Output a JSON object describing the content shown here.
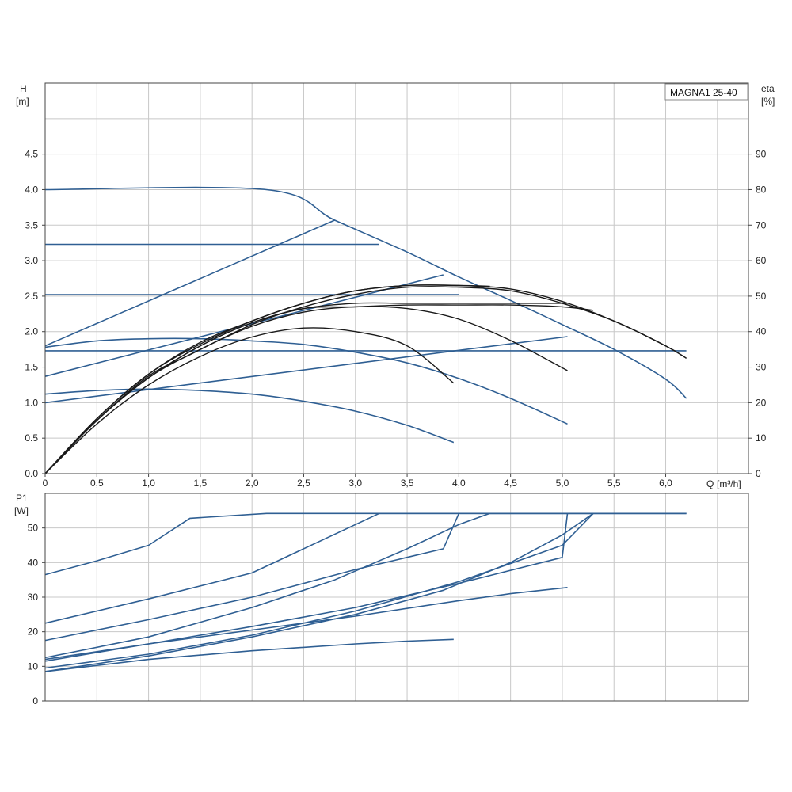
{
  "chart_data": [
    {
      "type": "line",
      "title": "MAGNA1 25-40",
      "y_label": "H",
      "y_unit": "[m]",
      "y2_label": "eta",
      "y2_unit": "[%]",
      "x_label": "Q",
      "x_unit": "[m³/h]",
      "xlim": [
        0,
        6.8
      ],
      "ylim": [
        0,
        5.5
      ],
      "y2lim": [
        0,
        110
      ],
      "x_ticks": [
        "0",
        "0,5",
        "1,0",
        "1,5",
        "2,0",
        "2,5",
        "3,0",
        "3,5",
        "4,0",
        "4,5",
        "5,0",
        "5,5",
        "6,0"
      ],
      "x_tick_values": [
        0,
        0.5,
        1,
        1.5,
        2,
        2.5,
        3,
        3.5,
        4,
        4.5,
        5,
        5.5,
        6
      ],
      "y_ticks": [
        "0.0",
        "0.5",
        "1.0",
        "1.5",
        "2.0",
        "2.5",
        "3.0",
        "3.5",
        "4.0",
        "4.5"
      ],
      "y_tick_values": [
        0,
        0.5,
        1,
        1.5,
        2,
        2.5,
        3,
        3.5,
        4,
        4.5
      ],
      "y2_ticks": [
        "0",
        "10",
        "20",
        "30",
        "40",
        "50",
        "60",
        "70",
        "80",
        "90"
      ],
      "y2_tick_values": [
        0,
        10,
        20,
        30,
        40,
        50,
        60,
        70,
        80,
        90
      ],
      "grid": true,
      "head_series": [
        {
          "points": [
            [
              0,
              4.0
            ],
            [
              2.14,
              4.0
            ],
            [
              2.8,
              3.57
            ],
            [
              3.5,
              3.12
            ],
            [
              4.0,
              2.77
            ],
            [
              4.5,
              2.44
            ],
            [
              5.0,
              2.1
            ],
            [
              5.5,
              1.75
            ],
            [
              6.0,
              1.33
            ],
            [
              6.2,
              1.06
            ]
          ]
        },
        {
          "points": [
            [
              0,
              3.23
            ],
            [
              3.23,
              3.23
            ]
          ]
        },
        {
          "points": [
            [
              0,
              2.52
            ],
            [
              4.0,
              2.52
            ]
          ]
        },
        {
          "points": [
            [
              0,
              1.73
            ],
            [
              5.0,
              1.73
            ],
            [
              6.2,
              1.73
            ]
          ]
        },
        {
          "points": [
            [
              0,
              1.8
            ],
            [
              2.8,
              3.57
            ]
          ]
        },
        {
          "points": [
            [
              0,
              1.37
            ],
            [
              3.85,
              2.8
            ]
          ]
        },
        {
          "points": [
            [
              0,
              1.0
            ],
            [
              5.05,
              1.93
            ]
          ]
        },
        {
          "points": [
            [
              0,
              1.78
            ],
            [
              0.5,
              1.87
            ],
            [
              1.0,
              1.9
            ],
            [
              1.5,
              1.9
            ],
            [
              2.0,
              1.87
            ],
            [
              2.5,
              1.82
            ],
            [
              3.0,
              1.71
            ],
            [
              3.5,
              1.56
            ],
            [
              4.0,
              1.34
            ],
            [
              4.5,
              1.06
            ],
            [
              5.05,
              0.7
            ]
          ]
        },
        {
          "points": [
            [
              0,
              1.12
            ],
            [
              0.5,
              1.17
            ],
            [
              1.0,
              1.19
            ],
            [
              1.5,
              1.17
            ],
            [
              2.0,
              1.12
            ],
            [
              2.5,
              1.02
            ],
            [
              3.0,
              0.88
            ],
            [
              3.5,
              0.68
            ],
            [
              3.95,
              0.44
            ]
          ]
        }
      ],
      "eta_series": [
        {
          "points": [
            [
              0,
              0
            ],
            [
              0.5,
              14
            ],
            [
              1.0,
              25
            ],
            [
              1.5,
              33
            ],
            [
              2.0,
              38.5
            ],
            [
              2.5,
              41
            ],
            [
              3.0,
              40
            ],
            [
              3.5,
              36
            ],
            [
              3.95,
              25.5
            ]
          ]
        },
        {
          "points": [
            [
              0,
              0
            ],
            [
              0.5,
              15
            ],
            [
              1.0,
              27
            ],
            [
              1.5,
              35
            ],
            [
              2.0,
              41.5
            ],
            [
              2.5,
              45.5
            ],
            [
              3.0,
              47
            ],
            [
              3.5,
              46.5
            ],
            [
              4.0,
              43.5
            ],
            [
              4.5,
              37.5
            ],
            [
              5.05,
              29
            ]
          ]
        },
        {
          "points": [
            [
              0,
              0
            ],
            [
              0.5,
              15
            ],
            [
              1.0,
              27
            ],
            [
              1.5,
              36
            ],
            [
              2.0,
              42.5
            ],
            [
              2.5,
              46.5
            ],
            [
              3.0,
              48
            ],
            [
              3.5,
              48
            ],
            [
              4.0,
              48
            ],
            [
              4.5,
              48
            ],
            [
              5.05,
              48
            ]
          ]
        },
        {
          "points": [
            [
              0,
              0
            ],
            [
              0.5,
              15
            ],
            [
              1.0,
              27
            ],
            [
              1.5,
              36
            ],
            [
              2.0,
              42.5
            ],
            [
              2.5,
              46.5
            ],
            [
              3.0,
              47
            ],
            [
              3.5,
              47.5
            ],
            [
              4.0,
              47.5
            ],
            [
              4.5,
              47.5
            ],
            [
              5.0,
              47
            ],
            [
              5.3,
              46
            ]
          ]
        },
        {
          "points": [
            [
              0,
              0
            ],
            [
              0.5,
              15.5
            ],
            [
              1.0,
              28
            ],
            [
              1.5,
              36.5
            ],
            [
              2.0,
              43
            ],
            [
              2.5,
              48
            ],
            [
              3.0,
              51.5
            ],
            [
              3.5,
              53
            ],
            [
              4.0,
              53
            ],
            [
              4.3,
              52.8
            ]
          ]
        },
        {
          "points": [
            [
              0,
              0
            ],
            [
              0.5,
              15.5
            ],
            [
              1.0,
              28
            ],
            [
              1.5,
              37
            ],
            [
              2.0,
              43
            ],
            [
              2.5,
              48
            ],
            [
              3.0,
              51.5
            ],
            [
              3.5,
              53
            ],
            [
              4.0,
              53
            ],
            [
              4.5,
              52
            ],
            [
              5.0,
              48.5
            ],
            [
              5.5,
              43
            ],
            [
              6.0,
              36
            ],
            [
              6.2,
              32.5
            ]
          ]
        },
        {
          "points": [
            [
              0,
              0
            ],
            [
              0.5,
              15
            ],
            [
              1.0,
              27.5
            ],
            [
              1.4,
              33.5
            ],
            [
              2.0,
              42
            ],
            [
              2.5,
              47
            ],
            [
              3.0,
              50.5
            ],
            [
              3.5,
              52.5
            ],
            [
              4.0,
              52.5
            ],
            [
              4.5,
              51.5
            ],
            [
              5.0,
              48
            ],
            [
              5.5,
              43
            ],
            [
              6.0,
              36
            ],
            [
              6.2,
              32.5
            ]
          ]
        }
      ]
    },
    {
      "type": "line",
      "y_label": "P1",
      "y_unit": "[W]",
      "xlim": [
        0,
        6.8
      ],
      "ylim": [
        0,
        60
      ],
      "y_ticks": [
        "0",
        "10",
        "20",
        "30",
        "40",
        "50"
      ],
      "y_tick_values": [
        0,
        10,
        20,
        30,
        40,
        50
      ],
      "grid": true,
      "series": [
        {
          "points": [
            [
              0,
              36.5
            ],
            [
              0.5,
              40.5
            ],
            [
              1.0,
              45
            ],
            [
              1.4,
              52.8
            ],
            [
              2.14,
              54.2
            ],
            [
              6.2,
              54.2
            ]
          ]
        },
        {
          "points": [
            [
              0,
              22.5
            ],
            [
              1.0,
              29.5
            ],
            [
              2.0,
              37
            ],
            [
              3.23,
              54.2
            ],
            [
              6.2,
              54.2
            ]
          ]
        },
        {
          "points": [
            [
              0,
              17.5
            ],
            [
              1.0,
              23.5
            ],
            [
              2.0,
              30
            ],
            [
              3.0,
              38
            ],
            [
              3.85,
              44
            ],
            [
              4.0,
              54.2
            ]
          ]
        },
        {
          "points": [
            [
              0,
              12.5
            ],
            [
              1.0,
              18.5
            ],
            [
              2.0,
              27
            ],
            [
              2.8,
              35
            ],
            [
              3.5,
              44
            ],
            [
              4.0,
              51
            ],
            [
              4.3,
              54.2
            ],
            [
              6.2,
              54.2
            ]
          ]
        },
        {
          "points": [
            [
              0,
              12
            ],
            [
              1.0,
              16.5
            ],
            [
              2.0,
              21.5
            ],
            [
              3.0,
              27
            ],
            [
              4.0,
              34
            ],
            [
              5.0,
              41.5
            ],
            [
              5.05,
              54.2
            ]
          ]
        },
        {
          "points": [
            [
              0,
              9.5
            ],
            [
              1.0,
              13.5
            ],
            [
              2.0,
              19
            ],
            [
              3.0,
              26
            ],
            [
              4.0,
              34.5
            ],
            [
              5.0,
              45
            ],
            [
              5.3,
              54.2
            ]
          ]
        },
        {
          "points": [
            [
              0,
              11.5
            ],
            [
              1.0,
              16.5
            ],
            [
              2.0,
              20.5
            ],
            [
              3.0,
              24.5
            ],
            [
              4.0,
              29
            ],
            [
              4.5,
              31
            ],
            [
              5.05,
              32.8
            ]
          ]
        },
        {
          "points": [
            [
              0,
              8.5
            ],
            [
              1.0,
              12
            ],
            [
              2.0,
              14.5
            ],
            [
              3.0,
              16.5
            ],
            [
              3.5,
              17.3
            ],
            [
              3.95,
              17.8
            ]
          ]
        },
        {
          "points": [
            [
              0,
              8.5
            ],
            [
              1.0,
              13
            ],
            [
              2.0,
              18.5
            ],
            [
              3.0,
              25
            ],
            [
              3.85,
              32
            ],
            [
              4.5,
              40
            ],
            [
              5.0,
              48
            ],
            [
              5.3,
              54.2
            ]
          ]
        }
      ]
    }
  ]
}
